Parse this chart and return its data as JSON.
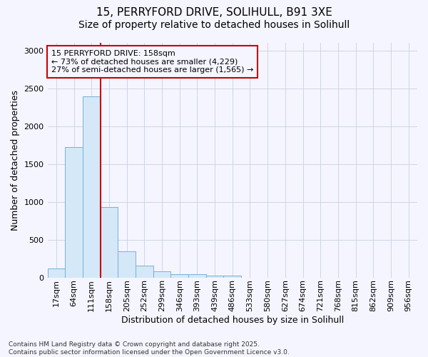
{
  "title_line1": "15, PERRYFORD DRIVE, SOLIHULL, B91 3XE",
  "title_line2": "Size of property relative to detached houses in Solihull",
  "xlabel": "Distribution of detached houses by size in Solihull",
  "ylabel": "Number of detached properties",
  "categories": [
    "17sqm",
    "64sqm",
    "111sqm",
    "158sqm",
    "205sqm",
    "252sqm",
    "299sqm",
    "346sqm",
    "393sqm",
    "439sqm",
    "486sqm",
    "533sqm",
    "580sqm",
    "627sqm",
    "674sqm",
    "721sqm",
    "768sqm",
    "815sqm",
    "862sqm",
    "909sqm",
    "956sqm"
  ],
  "values": [
    120,
    1720,
    2390,
    930,
    345,
    155,
    85,
    45,
    40,
    25,
    20,
    0,
    0,
    0,
    0,
    0,
    0,
    0,
    0,
    0,
    0
  ],
  "bar_color": "#d4e8f8",
  "bar_edge_color": "#7ab0d4",
  "vline_index": 3,
  "vline_color": "#cc0000",
  "annotation_text": "15 PERRYFORD DRIVE: 158sqm\n← 73% of detached houses are smaller (4,229)\n27% of semi-detached houses are larger (1,565) →",
  "annotation_box_color": "#cc0000",
  "ylim": [
    0,
    3100
  ],
  "yticks": [
    0,
    500,
    1000,
    1500,
    2000,
    2500,
    3000
  ],
  "footer_text": "Contains HM Land Registry data © Crown copyright and database right 2025.\nContains public sector information licensed under the Open Government Licence v3.0.",
  "background_color": "#f5f5ff",
  "grid_color": "#c8d0e0",
  "title1_fontsize": 11,
  "title2_fontsize": 10,
  "axis_label_fontsize": 9,
  "tick_fontsize": 8,
  "annotation_fontsize": 8,
  "footer_fontsize": 6.5
}
